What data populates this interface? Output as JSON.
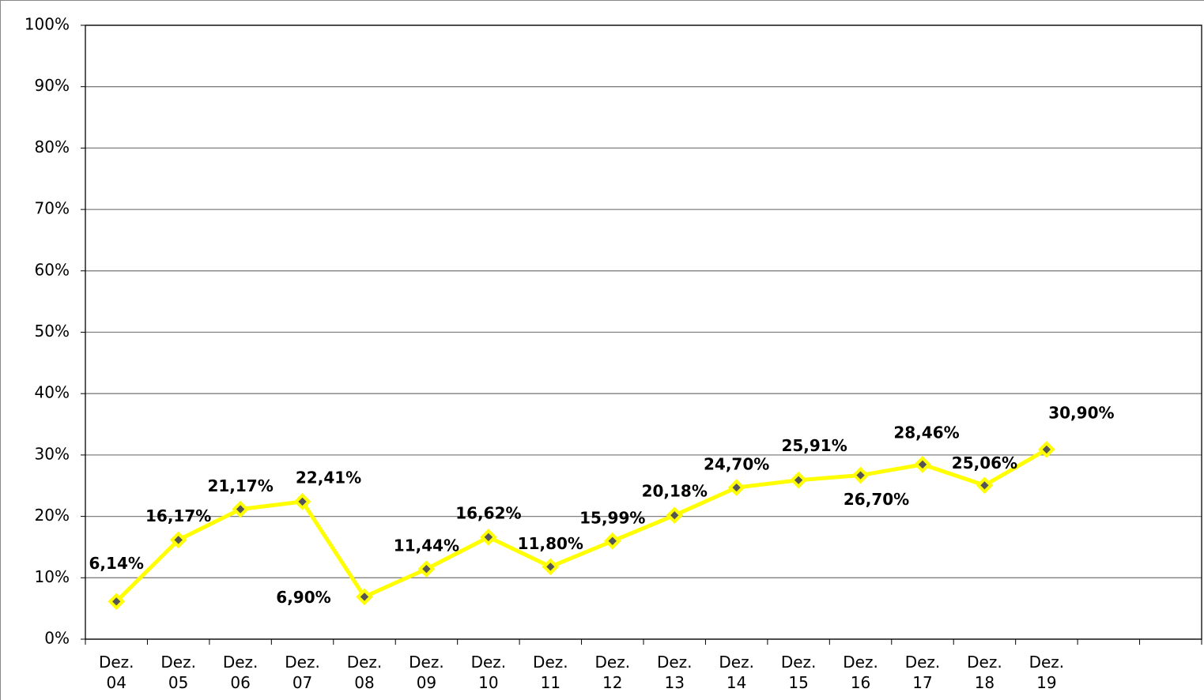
{
  "chart_data": {
    "type": "line",
    "categories": [
      "Dez. 04",
      "Dez. 05",
      "Dez. 06",
      "Dez. 07",
      "Dez. 08",
      "Dez. 09",
      "Dez. 10",
      "Dez. 11",
      "Dez. 12",
      "Dez. 13",
      "Dez. 14",
      "Dez. 15",
      "Dez. 16",
      "Dez. 17",
      "Dez. 18",
      "Dez. 19",
      null,
      null
    ],
    "series": [
      {
        "color": "#ffff00",
        "values": [
          6.14,
          16.17,
          21.17,
          22.41,
          6.9,
          11.44,
          16.62,
          11.8,
          15.99,
          20.18,
          24.7,
          25.91,
          26.7,
          28.46,
          25.06,
          30.9,
          null,
          null
        ],
        "value_labels": [
          "6,14%",
          "16,17%",
          "21,17%",
          "22,41%",
          "6,90%",
          "11,44%",
          "16,62%",
          "11,80%",
          "15,99%",
          "20,18%",
          "24,70%",
          "25,91%",
          "26,70%",
          "28,46%",
          "25,06%",
          "30,90%",
          null,
          null
        ]
      }
    ],
    "ylim": [
      0,
      100
    ],
    "yticks": [
      {
        "value": 0,
        "label": "0%"
      },
      {
        "value": 10,
        "label": "10%"
      },
      {
        "value": 20,
        "label": "20%"
      },
      {
        "value": 30,
        "label": "30%"
      },
      {
        "value": 40,
        "label": "40%"
      },
      {
        "value": 50,
        "label": "50%"
      },
      {
        "value": 60,
        "label": "60%"
      },
      {
        "value": 70,
        "label": "70%"
      },
      {
        "value": 80,
        "label": "80%"
      },
      {
        "value": 90,
        "label": "90%"
      },
      {
        "value": 100,
        "label": "100%"
      }
    ],
    "grid": true
  }
}
